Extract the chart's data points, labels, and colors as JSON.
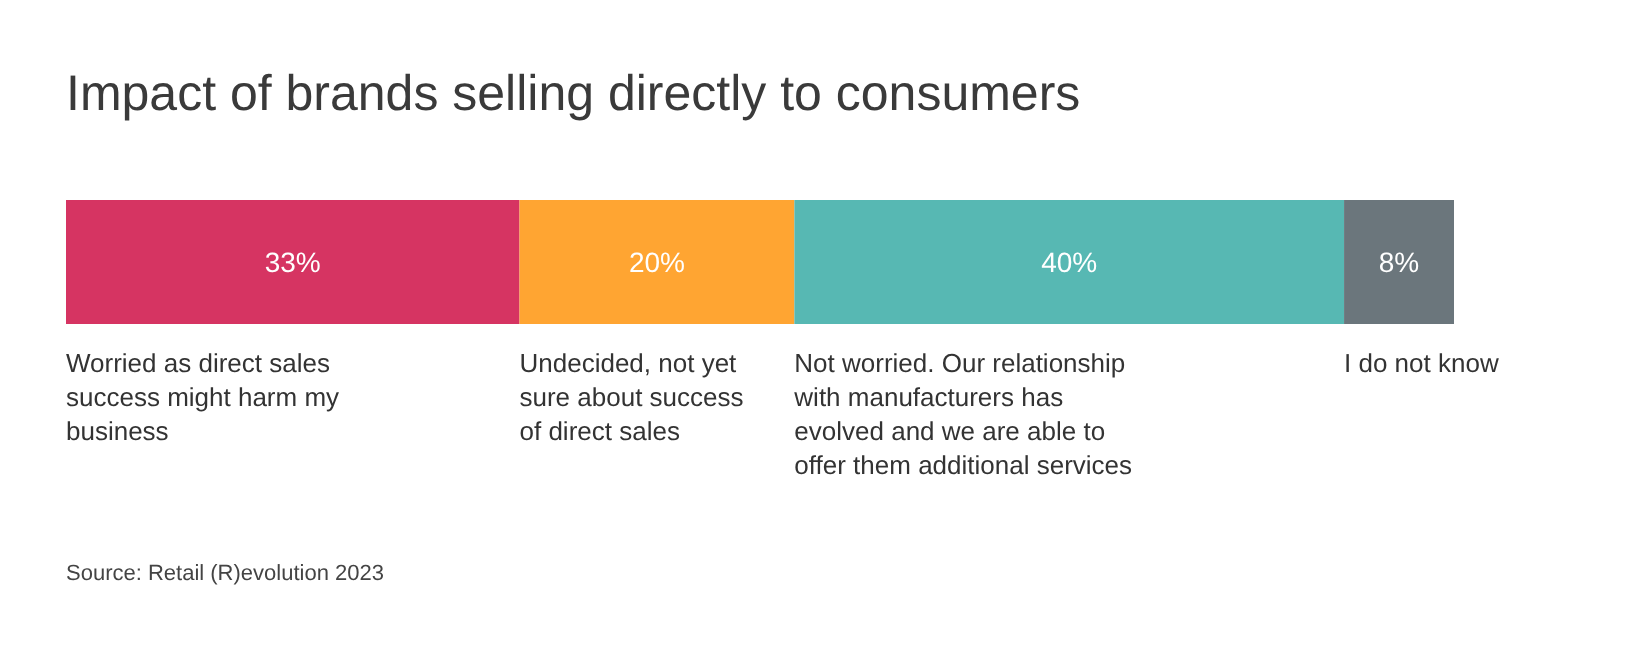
{
  "chart_data": {
    "type": "bar",
    "orientation": "horizontal",
    "stacked": true,
    "title": "Impact of brands selling directly to consumers",
    "categories": [
      null
    ],
    "xlim": [
      0,
      101
    ],
    "series": [
      {
        "name": "Worried as direct sales success might harm my business",
        "color": "#d63462",
        "values": [
          33
        ],
        "value_labels": [
          "33%"
        ]
      },
      {
        "name": "Undecided, not yet sure about success of direct sales",
        "color": "#ffa532",
        "values": [
          20
        ],
        "value_labels": [
          "20%"
        ]
      },
      {
        "name": "Not worried. Our relationship with manufacturers has evolved and we are able to offer them additional services",
        "color": "#57b8b3",
        "values": [
          40
        ],
        "value_labels": [
          "40%"
        ]
      },
      {
        "name": "I do not know",
        "color": "#6b767c",
        "values": [
          8
        ],
        "value_labels": [
          "8%"
        ]
      }
    ],
    "annotations": [
      "Source: Retail (R)evolution 2023"
    ]
  }
}
